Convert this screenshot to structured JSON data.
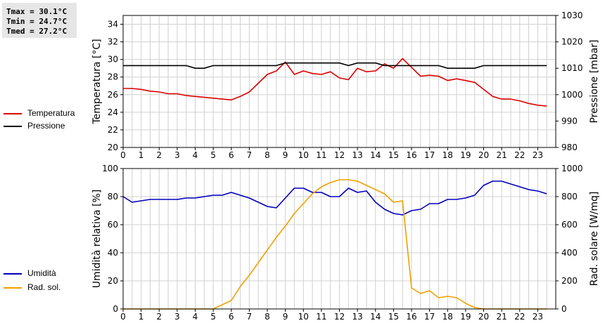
{
  "stats": {
    "tmax": "Tmax = 30.1°C",
    "tmin": "Tmin = 24.7°C",
    "tmed": "Tmed = 27.2°C"
  },
  "legend_top": [
    {
      "label": "Temperatura",
      "color": "#dd0000"
    },
    {
      "label": "Pressione",
      "color": "#000000"
    }
  ],
  "legend_bottom": [
    {
      "label": "Umidità",
      "color": "#0000bb"
    },
    {
      "label": "Rad. sol.",
      "color": "#f0a000"
    }
  ],
  "chart_data": [
    {
      "type": "line",
      "ylabel": "Temperatura [°C]",
      "y2label": "Pressione [mbar]",
      "xlim": [
        0,
        24
      ],
      "ylim": [
        20,
        35
      ],
      "y2lim": [
        980,
        1030
      ],
      "xticks": [
        "0",
        "1",
        "2",
        "3",
        "4",
        "5",
        "6",
        "7",
        "8",
        "9",
        "10",
        "11",
        "12",
        "13",
        "14",
        "15",
        "16",
        "17",
        "18",
        "19",
        "20",
        "21",
        "22",
        "23"
      ],
      "yticks": [
        "20",
        "22",
        "24",
        "26",
        "28",
        "30",
        "32",
        "34"
      ],
      "y2ticks": [
        "980",
        "990",
        "1000",
        "1010",
        "1020",
        "1030"
      ],
      "grid": true,
      "series": [
        {
          "name": "Temperatura",
          "color": "#dd0000",
          "axis": "left",
          "x": [
            0,
            0.5,
            1,
            1.5,
            2,
            2.5,
            3,
            3.5,
            4,
            4.5,
            5,
            5.5,
            6,
            6.5,
            7,
            7.5,
            8,
            8.5,
            9,
            9.5,
            10,
            10.5,
            11,
            11.5,
            12,
            12.5,
            13,
            13.5,
            14,
            14.5,
            15,
            15.5,
            16,
            16.5,
            17,
            17.5,
            18,
            18.5,
            19,
            19.5,
            20,
            20.5,
            21,
            21.5,
            22,
            22.5,
            23,
            23.5
          ],
          "y": [
            26.7,
            26.7,
            26.6,
            26.4,
            26.3,
            26.1,
            26.1,
            25.9,
            25.8,
            25.7,
            25.6,
            25.5,
            25.4,
            25.8,
            26.3,
            27.3,
            28.3,
            28.7,
            29.7,
            28.3,
            28.7,
            28.4,
            28.3,
            28.6,
            27.9,
            27.7,
            29.0,
            28.6,
            28.7,
            29.5,
            29.0,
            30.1,
            29.1,
            28.1,
            28.2,
            28.1,
            27.6,
            27.8,
            27.6,
            27.4,
            26.6,
            25.8,
            25.5,
            25.5,
            25.3,
            25.0,
            24.8,
            24.7
          ]
        },
        {
          "name": "Pressione",
          "color": "#000000",
          "axis": "right",
          "x": [
            0,
            3.5,
            4,
            4.5,
            5,
            8.5,
            9,
            12,
            12.5,
            13,
            14,
            14.5,
            15,
            15.5,
            16,
            17.5,
            18,
            19.5,
            20,
            23.5
          ],
          "y": [
            1011,
            1011,
            1010,
            1010,
            1011,
            1011,
            1012,
            1012,
            1011,
            1012,
            1012,
            1011,
            1011,
            1011,
            1011,
            1011,
            1010,
            1010,
            1011,
            1011
          ]
        }
      ]
    },
    {
      "type": "line",
      "ylabel": "Umidità relativa [%]",
      "y2label": "Rad. solare [W/mq]",
      "xlim": [
        0,
        24
      ],
      "ylim": [
        0,
        100
      ],
      "y2lim": [
        0,
        1000
      ],
      "xticks": [
        "0",
        "1",
        "2",
        "3",
        "4",
        "5",
        "6",
        "7",
        "8",
        "9",
        "10",
        "11",
        "12",
        "13",
        "14",
        "15",
        "16",
        "17",
        "18",
        "19",
        "20",
        "21",
        "22",
        "23"
      ],
      "yticks": [
        "0",
        "20",
        "40",
        "60",
        "80",
        "100"
      ],
      "y2ticks": [
        "0",
        "200",
        "400",
        "600",
        "800",
        "1000"
      ],
      "grid": true,
      "series": [
        {
          "name": "Umidità",
          "color": "#0000bb",
          "axis": "left",
          "x": [
            0,
            0.5,
            1,
            1.5,
            2,
            2.5,
            3,
            3.5,
            4,
            4.5,
            5,
            5.5,
            6,
            6.5,
            7,
            7.5,
            8,
            8.5,
            9,
            9.5,
            10,
            10.5,
            11,
            11.5,
            12,
            12.5,
            13,
            13.5,
            14,
            14.5,
            15,
            15.5,
            16,
            16.5,
            17,
            17.5,
            18,
            18.5,
            19,
            19.5,
            20,
            20.5,
            21,
            21.5,
            22,
            22.5,
            23,
            23.5
          ],
          "y": [
            80,
            76,
            77,
            78,
            78,
            78,
            78,
            79,
            79,
            80,
            81,
            81,
            83,
            81,
            79,
            76,
            73,
            72,
            79,
            86,
            86,
            83,
            83,
            80,
            80,
            86,
            83,
            84,
            76,
            71,
            68,
            67,
            70,
            71,
            75,
            75,
            78,
            78,
            79,
            81,
            88,
            91,
            91,
            89,
            87,
            85,
            84,
            82
          ]
        },
        {
          "name": "Rad. sol.",
          "color": "#f0a000",
          "axis": "right",
          "x": [
            0,
            0.5,
            1,
            1.5,
            2,
            2.5,
            3,
            3.5,
            4,
            4.5,
            5,
            5.5,
            6,
            6.5,
            7,
            7.5,
            8,
            8.5,
            9,
            9.5,
            10,
            10.5,
            11,
            11.5,
            12,
            12.5,
            13,
            13.5,
            14,
            14.5,
            15,
            15.5,
            16,
            16.5,
            17,
            17.5,
            18,
            18.5,
            19,
            19.5,
            20,
            20.5,
            21,
            21.5,
            22,
            22.5,
            23,
            23.5
          ],
          "y": [
            0,
            0,
            0,
            0,
            0,
            0,
            0,
            0,
            0,
            0,
            0,
            30,
            60,
            160,
            240,
            330,
            420,
            510,
            590,
            680,
            750,
            820,
            870,
            900,
            920,
            920,
            910,
            880,
            850,
            820,
            760,
            770,
            150,
            110,
            130,
            80,
            90,
            80,
            40,
            10,
            0,
            0,
            0,
            0,
            0,
            0,
            0,
            0
          ]
        }
      ]
    }
  ]
}
